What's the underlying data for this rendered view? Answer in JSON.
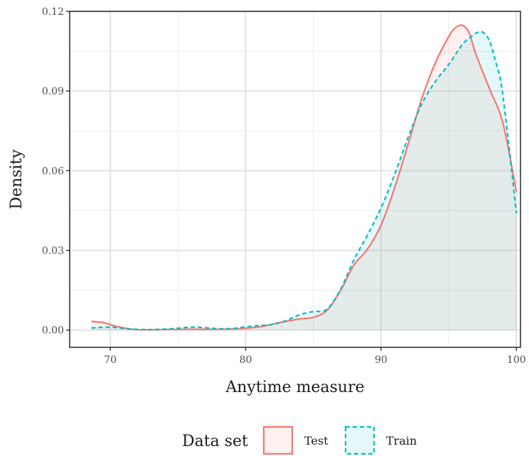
{
  "chart_data": {
    "type": "area",
    "xlabel": "Anytime measure",
    "ylabel": "Density",
    "xlim": [
      67,
      100.3
    ],
    "ylim": [
      -0.0065,
      0.12
    ],
    "x_ticks": [
      70,
      80,
      90,
      100
    ],
    "x_tick_labels": [
      "70",
      "80",
      "90",
      "100"
    ],
    "y_ticks": [
      0.0,
      0.03,
      0.06,
      0.09,
      0.12
    ],
    "y_tick_labels": [
      "0.00",
      "0.03",
      "0.06",
      "0.09",
      "0.12"
    ],
    "grid": true,
    "legend": {
      "position": "bottom",
      "title": "Data set",
      "entries": [
        {
          "label": "Test",
          "series": 0
        },
        {
          "label": "Train",
          "series": 1
        }
      ]
    },
    "series": [
      {
        "name": "Test",
        "color": "#F8766D",
        "fill": "#F8766D",
        "fill_opacity": 0.1,
        "dash": "solid",
        "x": [
          68.6,
          69.5,
          70.5,
          71.5,
          72.5,
          74,
          76,
          78,
          79.5,
          81,
          82.5,
          84,
          85,
          86,
          87,
          88,
          89,
          90,
          91,
          92,
          93,
          94,
          95,
          95.5,
          96,
          96.5,
          97,
          98,
          99,
          100
        ],
        "y": [
          0.0033,
          0.0028,
          0.0013,
          0.0004,
          0.0001,
          0.0002,
          0.0003,
          0.0003,
          0.0005,
          0.0012,
          0.0028,
          0.0042,
          0.0048,
          0.0074,
          0.0148,
          0.0245,
          0.0305,
          0.0395,
          0.0535,
          0.07,
          0.087,
          0.1005,
          0.1105,
          0.1138,
          0.1148,
          0.112,
          0.104,
          0.091,
          0.078,
          0.052
        ]
      },
      {
        "name": "Train",
        "color": "#00BFC4",
        "fill": "#00BFC4",
        "fill_opacity": 0.1,
        "dash": "dashed",
        "x": [
          68.6,
          70,
          71.5,
          73,
          74.5,
          76,
          77,
          78,
          79,
          80,
          81,
          82,
          83,
          84,
          85,
          86,
          87,
          88,
          89,
          90,
          91,
          92,
          93,
          94,
          95,
          96,
          96.5,
          97,
          97.5,
          98,
          98.5,
          99,
          100
        ],
        "y": [
          0.0008,
          0.0011,
          0.0004,
          0.0002,
          0.0005,
          0.0011,
          0.0009,
          0.0005,
          0.0006,
          0.0012,
          0.0017,
          0.0021,
          0.0036,
          0.0058,
          0.007,
          0.0078,
          0.0152,
          0.0265,
          0.0358,
          0.046,
          0.0585,
          0.0725,
          0.085,
          0.0935,
          0.1,
          0.1075,
          0.1098,
          0.1118,
          0.1122,
          0.109,
          0.1005,
          0.0885,
          0.044
        ]
      }
    ]
  }
}
